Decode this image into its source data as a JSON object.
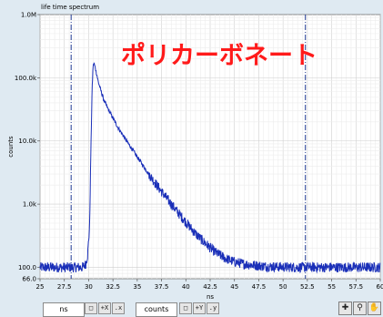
{
  "chart_data": {
    "type": "line",
    "title": "life time spectrum",
    "annotation": "ポリカーボネート",
    "xlabel": "ns",
    "ylabel": "counts",
    "xlim": [
      25,
      60
    ],
    "ylim": [
      66.0,
      1000000
    ],
    "yscale": "log",
    "x_ticks": [
      25,
      27.5,
      30,
      32.5,
      35,
      37.5,
      40,
      42.5,
      45,
      47.5,
      50,
      52.5,
      55,
      57.5,
      60
    ],
    "x_tick_labels": [
      "25",
      "27.5",
      "30",
      "32.5",
      "35",
      "37.5",
      "40",
      "42.5",
      "45",
      "47.5",
      "50",
      "52.5",
      "55",
      "57.5",
      "60"
    ],
    "y_ticks": [
      66.0,
      100,
      1000,
      10000,
      100000,
      1000000
    ],
    "y_tick_labels": [
      "66.0",
      "100.0",
      "1.0k",
      "10.0k",
      "100.0k",
      "1.0M"
    ],
    "cursors_x": [
      28.2,
      52.3
    ],
    "grid": true,
    "series": [
      {
        "color": "#1a2fb8",
        "x": [
          25.0,
          29.3,
          29.5,
          29.7,
          29.9,
          30.1,
          30.2,
          30.35,
          30.45,
          30.55,
          30.7,
          30.85,
          31.0,
          31.3,
          31.6,
          32.0,
          32.5,
          33.0,
          34.0,
          35.0,
          36.0,
          37.0,
          38.0,
          39.0,
          40.0,
          41.0,
          42.0,
          43.0,
          44.0,
          45.0,
          46.0,
          47.0,
          48.0,
          50.0,
          52.0,
          55.0,
          60.0
        ],
        "values": [
          100,
          100,
          103,
          112,
          160,
          450,
          4000,
          60000,
          150000,
          170000,
          140000,
          110000,
          85000,
          60000,
          43000,
          32000,
          23000,
          16500,
          9500,
          5600,
          3300,
          2000,
          1250,
          800,
          520,
          340,
          240,
          175,
          140,
          122,
          113,
          108,
          104,
          101,
          100,
          100,
          100
        ],
        "noise": 0.05
      }
    ]
  },
  "colors": {
    "background": "#dfeaf2",
    "plot_background": "#ffffff",
    "trace": "#1a2fb8",
    "cursor": "#1f3a93",
    "annotation": "#ff1a1a"
  },
  "footer": {
    "x_unit": "ns",
    "y_unit": "counts",
    "tools": [
      "lock-icon",
      "x-scale-icon",
      "x-format-icon",
      "y-scale-icon",
      "y-format-icon"
    ],
    "palette": [
      "crosshair-icon",
      "zoom-icon",
      "pan-icon"
    ]
  }
}
